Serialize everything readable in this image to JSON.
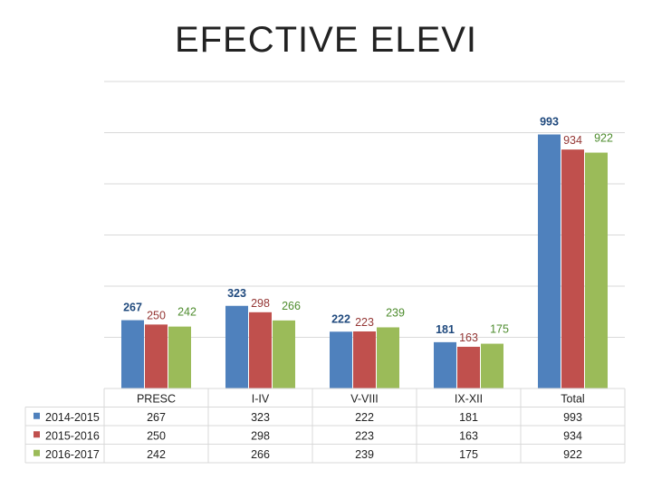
{
  "title": "EFECTIVE ELEVI",
  "chart_data": {
    "type": "bar",
    "categories": [
      "PRESC",
      "I-IV",
      "V-VIII",
      "IX-XII",
      "Total"
    ],
    "series": [
      {
        "name": "2014-2015",
        "values": [
          267,
          323,
          222,
          181,
          993
        ],
        "color": "#4F81BD",
        "label_color": "#1F497D"
      },
      {
        "name": "2015-2016",
        "values": [
          250,
          298,
          223,
          163,
          934
        ],
        "color": "#C0504D",
        "label_color": "#943634"
      },
      {
        "name": "2016-2017",
        "values": [
          242,
          266,
          239,
          175,
          922
        ],
        "color": "#9BBB59",
        "label_color": "#4E8C2E"
      }
    ],
    "ylim": [
      0,
      1200
    ],
    "grid": true,
    "legend": "data-table",
    "data_table": true
  }
}
